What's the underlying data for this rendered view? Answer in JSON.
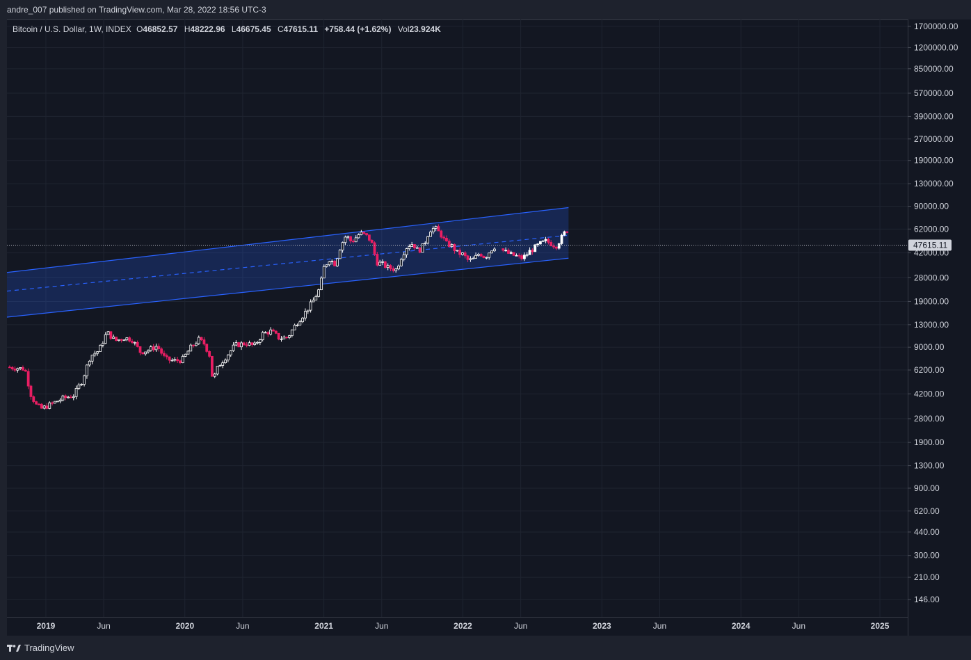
{
  "header": {
    "published": "andre_007 published on TradingView.com, Mar 28, 2022 18:56 UTC-3"
  },
  "legend": {
    "symbol": "Bitcoin / U.S. Dollar, 1W, INDEX",
    "o_label": "O",
    "o_value": "46852.57",
    "h_label": "H",
    "h_value": "48222.96",
    "l_label": "L",
    "l_value": "46675.45",
    "c_label": "C",
    "c_value": "47615.11",
    "change": "+758.44 (+1.62%)",
    "vol_label": "Vol",
    "vol_value": "23.924K"
  },
  "footer": {
    "brand": "TradingView"
  },
  "colors": {
    "background": "#131722",
    "up": "#ffffff",
    "down": "#e91e63",
    "channel": "#2962ff",
    "grid": "#1f2430"
  },
  "chart_data": {
    "type": "candlestick",
    "title": "Bitcoin / U.S. Dollar, 1W, INDEX",
    "y_scale": "log",
    "ylim": [
      110,
      1900000
    ],
    "current_price": {
      "value": 47615.11,
      "label": "47615.11"
    },
    "y_ticks": [
      {
        "v": 1700000,
        "label": "1700000.00"
      },
      {
        "v": 1200000,
        "label": "1200000.00"
      },
      {
        "v": 850000,
        "label": "850000.00"
      },
      {
        "v": 570000,
        "label": "570000.00"
      },
      {
        "v": 390000,
        "label": "390000.00"
      },
      {
        "v": 270000,
        "label": "270000.00"
      },
      {
        "v": 190000,
        "label": "190000.00"
      },
      {
        "v": 130000,
        "label": "130000.00"
      },
      {
        "v": 90000,
        "label": "90000.00"
      },
      {
        "v": 62000,
        "label": "62000.00"
      },
      {
        "v": 42000,
        "label": "42000.00"
      },
      {
        "v": 28000,
        "label": "28000.00"
      },
      {
        "v": 19000,
        "label": "19000.00"
      },
      {
        "v": 13000,
        "label": "13000.00"
      },
      {
        "v": 9000,
        "label": "9000.00"
      },
      {
        "v": 6200,
        "label": "6200.00"
      },
      {
        "v": 4200,
        "label": "4200.00"
      },
      {
        "v": 2800,
        "label": "2800.00"
      },
      {
        "v": 1900,
        "label": "1900.00"
      },
      {
        "v": 1300,
        "label": "1300.00"
      },
      {
        "v": 900,
        "label": "900.00"
      },
      {
        "v": 620,
        "label": "620.00"
      },
      {
        "v": 440,
        "label": "440.00"
      },
      {
        "v": 300,
        "label": "300.00"
      },
      {
        "v": 210,
        "label": "210.00"
      },
      {
        "v": 146,
        "label": "146.00"
      }
    ],
    "x_ticks": [
      {
        "t": 2019.0,
        "label": "2019",
        "bold": true
      },
      {
        "t": 2019.416,
        "label": "Jun",
        "bold": false
      },
      {
        "t": 2020.0,
        "label": "2020",
        "bold": true
      },
      {
        "t": 2020.416,
        "label": "Jun",
        "bold": false
      },
      {
        "t": 2021.0,
        "label": "2021",
        "bold": true
      },
      {
        "t": 2021.416,
        "label": "Jun",
        "bold": false
      },
      {
        "t": 2022.0,
        "label": "2022",
        "bold": true
      },
      {
        "t": 2022.416,
        "label": "Jun",
        "bold": false
      },
      {
        "t": 2023.0,
        "label": "2023",
        "bold": true
      },
      {
        "t": 2023.416,
        "label": "Jun",
        "bold": false
      },
      {
        "t": 2024.0,
        "label": "2024",
        "bold": true
      },
      {
        "t": 2024.416,
        "label": "Jun",
        "bold": false
      },
      {
        "t": 2025.0,
        "label": "2025",
        "bold": true
      }
    ],
    "xlim": [
      2018.72,
      2025.2
    ],
    "channel": {
      "t_start": 2018.72,
      "t_end": 2022.76,
      "upper": [
        30500,
        88000
      ],
      "middle": [
        22500,
        56000
      ],
      "lower": [
        14700,
        38500
      ]
    },
    "price_path": [
      [
        2018.72,
        6500
      ],
      [
        2018.8,
        6400
      ],
      [
        2018.85,
        6300
      ],
      [
        2018.89,
        4200
      ],
      [
        2018.93,
        3500
      ],
      [
        2018.97,
        3300
      ],
      [
        2019.05,
        3600
      ],
      [
        2019.12,
        3900
      ],
      [
        2019.2,
        4100
      ],
      [
        2019.26,
        5200
      ],
      [
        2019.32,
        7800
      ],
      [
        2019.38,
        8500
      ],
      [
        2019.44,
        11500
      ],
      [
        2019.5,
        10000
      ],
      [
        2019.56,
        10500
      ],
      [
        2019.62,
        10200
      ],
      [
        2019.68,
        8300
      ],
      [
        2019.74,
        8600
      ],
      [
        2019.8,
        9200
      ],
      [
        2019.86,
        7400
      ],
      [
        2019.92,
        7200
      ],
      [
        2019.98,
        7300
      ],
      [
        2020.04,
        8900
      ],
      [
        2020.1,
        10200
      ],
      [
        2020.14,
        9500
      ],
      [
        2020.18,
        7800
      ],
      [
        2020.2,
        5200
      ],
      [
        2020.24,
        6600
      ],
      [
        2020.3,
        7800
      ],
      [
        2020.36,
        9300
      ],
      [
        2020.44,
        9600
      ],
      [
        2020.5,
        9200
      ],
      [
        2020.56,
        11200
      ],
      [
        2020.62,
        11700
      ],
      [
        2020.68,
        10400
      ],
      [
        2020.74,
        10600
      ],
      [
        2020.8,
        13200
      ],
      [
        2020.86,
        15600
      ],
      [
        2020.92,
        19000
      ],
      [
        2020.97,
        23500
      ],
      [
        2021.0,
        33000
      ],
      [
        2021.04,
        38000
      ],
      [
        2021.08,
        35000
      ],
      [
        2021.12,
        47000
      ],
      [
        2021.16,
        56000
      ],
      [
        2021.2,
        50000
      ],
      [
        2021.26,
        58000
      ],
      [
        2021.3,
        56000
      ],
      [
        2021.34,
        51000
      ],
      [
        2021.38,
        36000
      ],
      [
        2021.42,
        35000
      ],
      [
        2021.46,
        33000
      ],
      [
        2021.52,
        32000
      ],
      [
        2021.56,
        40000
      ],
      [
        2021.6,
        47000
      ],
      [
        2021.64,
        49000
      ],
      [
        2021.68,
        43000
      ],
      [
        2021.72,
        48000
      ],
      [
        2021.76,
        61000
      ],
      [
        2021.8,
        63000
      ],
      [
        2021.84,
        57000
      ],
      [
        2021.88,
        49000
      ],
      [
        2021.92,
        47000
      ],
      [
        2021.96,
        42000
      ],
      [
        2022.0,
        41000
      ],
      [
        2022.04,
        37000
      ],
      [
        2022.08,
        38000
      ],
      [
        2022.12,
        42000
      ],
      [
        2022.16,
        39000
      ],
      [
        2022.2,
        44000
      ],
      [
        2022.24,
        47615
      ]
    ],
    "projection_path": [
      [
        2022.27,
        45000
      ],
      [
        2022.3,
        43000
      ],
      [
        2022.34,
        41000
      ],
      [
        2022.38,
        40000
      ],
      [
        2022.42,
        38500
      ],
      [
        2022.45,
        40000
      ],
      [
        2022.48,
        43000
      ],
      [
        2022.52,
        46000
      ],
      [
        2022.56,
        49000
      ],
      [
        2022.6,
        51000
      ],
      [
        2022.64,
        48500
      ],
      [
        2022.67,
        47000
      ],
      [
        2022.7,
        52000
      ],
      [
        2022.73,
        58000
      ],
      [
        2022.76,
        62000
      ]
    ]
  }
}
